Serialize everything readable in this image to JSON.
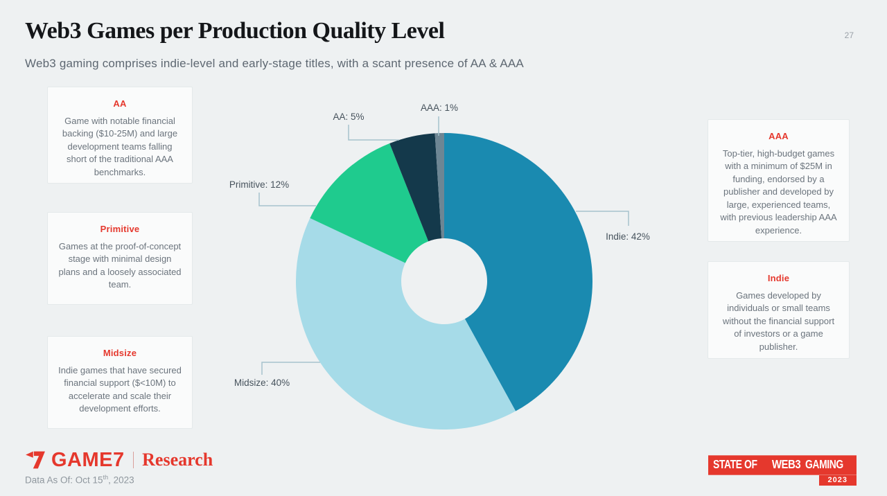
{
  "page": {
    "number": "27"
  },
  "header": {
    "title": "Web3 Games per Production Quality Level",
    "subtitle": "Web3 gaming comprises indie-level and early-stage titles, with a scant presence of AA & AAA"
  },
  "cards_left": [
    {
      "title": "AA",
      "body": "Game with notable financial backing ($10-25M) and large development teams falling short of the traditional AAA benchmarks."
    },
    {
      "title": "Primitive",
      "body": "Games at the proof-of-concept stage with minimal design plans and a loosely associated team."
    },
    {
      "title": "Midsize",
      "body": "Indie games that have secured financial support ($<10M) to accelerate and scale their development efforts."
    }
  ],
  "cards_right": [
    {
      "title": "AAA",
      "body": "Top-tier, high-budget games with a minimum of $25M in funding, endorsed by a publisher and developed by large, experienced teams, with previous leadership AAA experience."
    },
    {
      "title": "Indie",
      "body": "Games developed by individuals or small teams without the financial support of investors or a game publisher."
    }
  ],
  "chart_data": {
    "type": "pie",
    "donut": true,
    "title": "Web3 Games per Production Quality Level",
    "start_at_top_clockwise": true,
    "segments": [
      {
        "label": "Indie",
        "value": 42,
        "color": "#1a8ab0",
        "callout": "Indie: 42%"
      },
      {
        "label": "Midsize",
        "value": 40,
        "color": "#a6dbe8",
        "callout": "Midsize: 40%"
      },
      {
        "label": "Primitive",
        "value": 12,
        "color": "#1fcb8e",
        "callout": "Primitive: 12%"
      },
      {
        "label": "AA",
        "value": 5,
        "color": "#14394b",
        "callout": "AA: 5%"
      },
      {
        "label": "AAA",
        "value": 1,
        "color": "#6d8694",
        "callout": "AAA: 1%"
      }
    ],
    "legend_position": "callouts",
    "grid": false
  },
  "footer": {
    "brand": "GAME7",
    "brand_sub": "Research",
    "data_as_of_prefix": "Data As Of: Oct 15",
    "data_as_of_sup": "th",
    "data_as_of_suffix": ", 2023",
    "badge_word_1": "STATE OF",
    "badge_word_2": "WEB3",
    "badge_word_3": "GAMING",
    "badge_year": "2023"
  },
  "colors": {
    "background": "#eef1f2",
    "card_background": "#fafbfb",
    "accent_red": "#e5382d",
    "leader_line": "#a5c3cd",
    "title_text": "#141619",
    "body_text": "#6b747d"
  }
}
